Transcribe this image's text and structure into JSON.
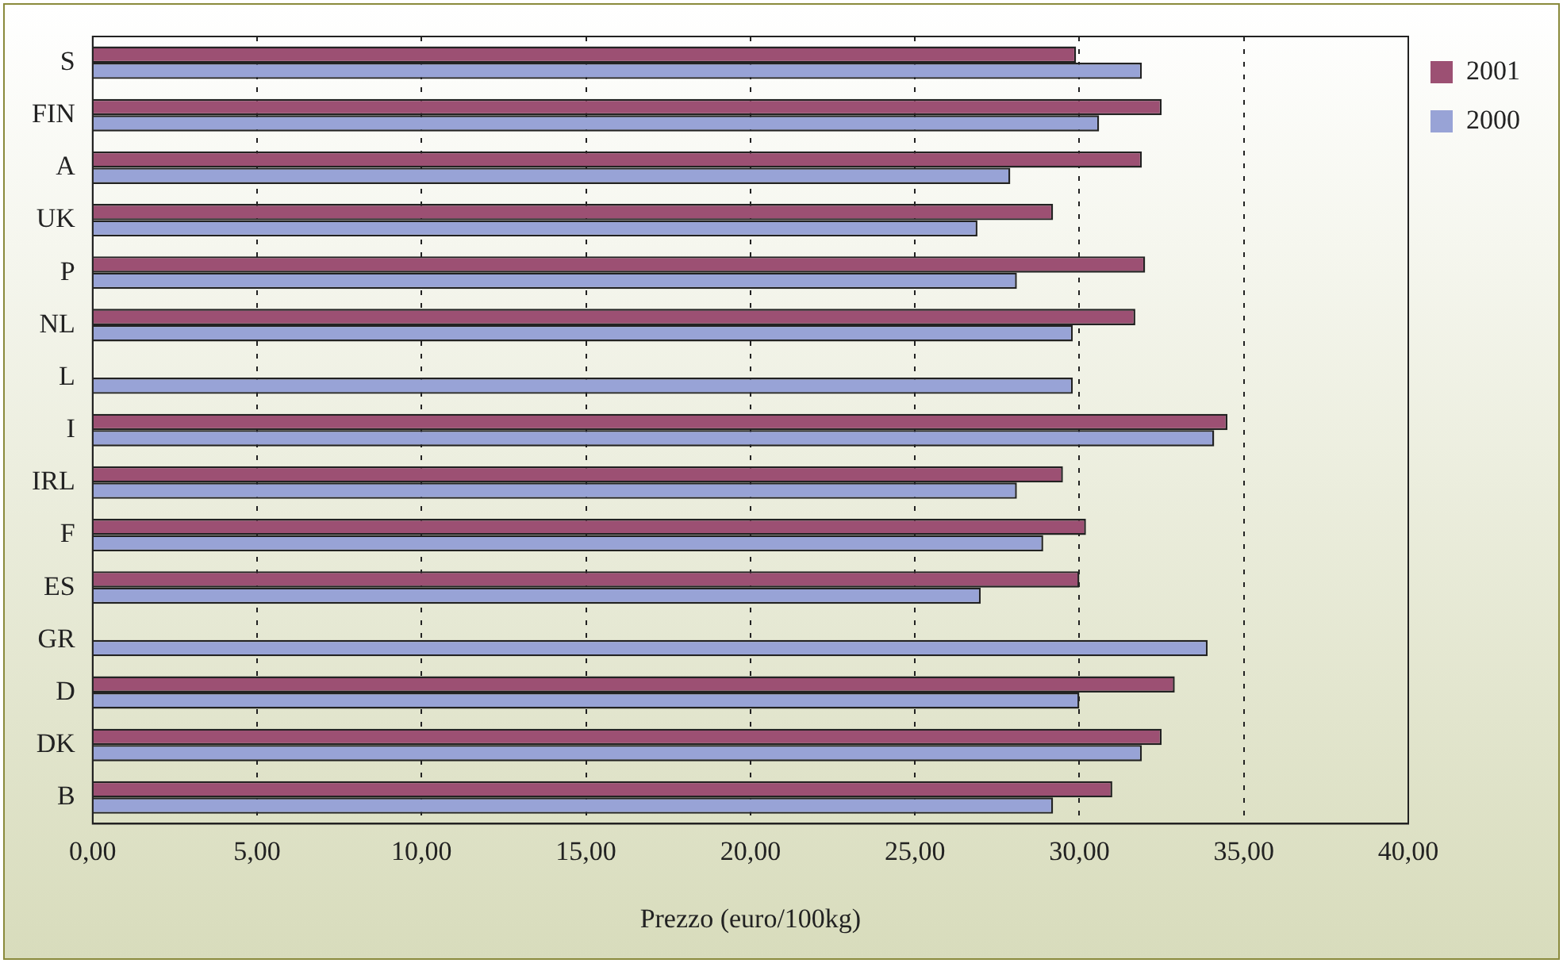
{
  "chart_data": {
    "type": "bar",
    "orientation": "horizontal",
    "xlabel": "Prezzo (euro/100kg)",
    "categories": [
      "S",
      "FIN",
      "A",
      "UK",
      "P",
      "NL",
      "L",
      "I",
      "IRL",
      "F",
      "ES",
      "GR",
      "D",
      "DK",
      "B"
    ],
    "series": [
      {
        "name": "2001",
        "color": "#9c5073",
        "values": [
          29.9,
          32.5,
          31.9,
          29.2,
          32.0,
          31.7,
          null,
          34.5,
          29.5,
          30.2,
          30.0,
          null,
          32.9,
          32.5,
          31.0
        ]
      },
      {
        "name": "2000",
        "color": "#98a3d6",
        "values": [
          31.9,
          30.6,
          27.9,
          26.9,
          28.1,
          29.8,
          29.8,
          34.1,
          28.1,
          28.9,
          27.0,
          33.9,
          30.0,
          31.9,
          29.2
        ]
      }
    ],
    "xlim": [
      0,
      40
    ],
    "xticks": [
      {
        "value": 0,
        "label": "0,00"
      },
      {
        "value": 5,
        "label": "5,00"
      },
      {
        "value": 10,
        "label": "10,00"
      },
      {
        "value": 15,
        "label": "15,00"
      },
      {
        "value": 20,
        "label": "20,00"
      },
      {
        "value": 25,
        "label": "25,00"
      },
      {
        "value": 30,
        "label": "30,00"
      },
      {
        "value": 35,
        "label": "35,00"
      },
      {
        "value": 40,
        "label": "40,00"
      }
    ],
    "grid": "x",
    "legend": "top right"
  }
}
